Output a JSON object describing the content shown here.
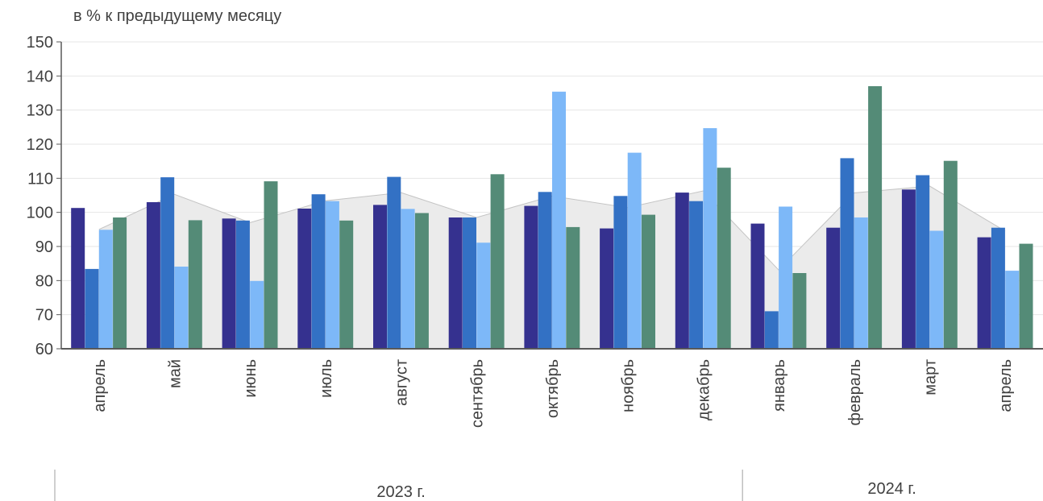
{
  "chart_data": {
    "type": "bar",
    "unit_label": "в % к предыдущему месяцу",
    "categories": [
      "апрель",
      "май",
      "июнь",
      "июль",
      "август",
      "сентябрь",
      "октябрь",
      "ноябрь",
      "декабрь",
      "январь",
      "февраль",
      "март",
      "апрель"
    ],
    "year_groups": [
      {
        "label": "2023 г.",
        "from": 0,
        "to": 8
      },
      {
        "label": "2024 г.",
        "from": 9,
        "to": 12
      }
    ],
    "ylim": [
      60,
      150
    ],
    "yticks": [
      60,
      70,
      80,
      90,
      100,
      110,
      120,
      130,
      140,
      150
    ],
    "grid": true,
    "series": [
      {
        "color": "#35318f",
        "values": [
          101.3,
          103.0,
          98.2,
          101.1,
          102.2,
          98.5,
          101.9,
          95.3,
          105.8,
          96.7,
          95.5,
          106.7,
          92.7
        ]
      },
      {
        "color": "#3371c4",
        "values": [
          83.4,
          110.3,
          97.6,
          105.3,
          110.4,
          98.5,
          106.0,
          104.8,
          103.3,
          71.0,
          115.9,
          110.9,
          95.5
        ]
      },
      {
        "color": "#7db8f8",
        "values": [
          94.9,
          84.1,
          79.9,
          103.3,
          101.0,
          91.1,
          135.4,
          117.5,
          124.7,
          101.7,
          98.5,
          94.6,
          82.9
        ]
      },
      {
        "color": "#548b77",
        "values": [
          98.5,
          97.7,
          109.1,
          97.6,
          99.8,
          111.2,
          95.7,
          99.3,
          113.1,
          82.2,
          137.0,
          115.1,
          90.8
        ]
      }
    ],
    "area": {
      "color": "#ebebeb",
      "line_color": "#c4c4c4",
      "values": [
        95,
        105.3,
        97,
        103.4,
        105.8,
        98.5,
        104.8,
        101.4,
        106.3,
        83.1,
        105.7,
        107.7,
        94.5
      ]
    }
  }
}
